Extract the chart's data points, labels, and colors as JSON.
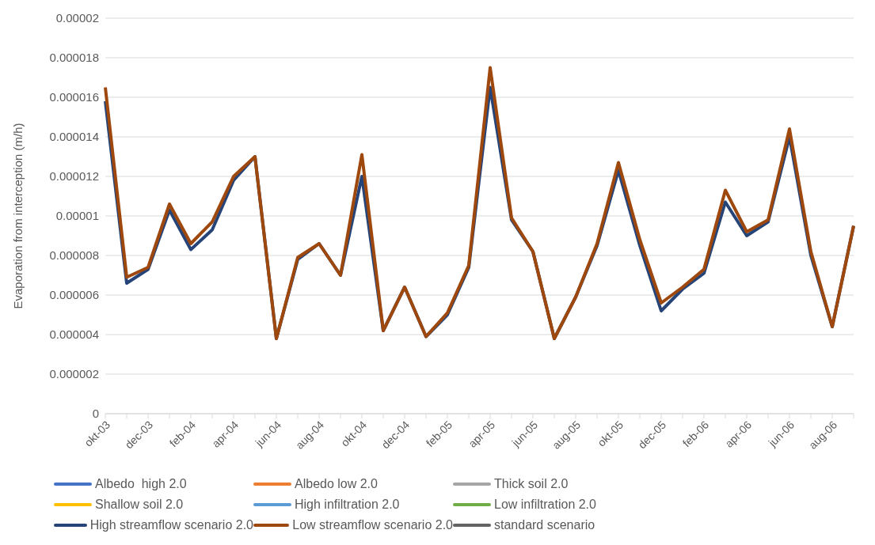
{
  "chart_data": {
    "type": "line",
    "ylabel": "Evaporation from interception (m/h)",
    "categories": [
      "okt-03",
      null,
      "dec-03",
      null,
      "feb-04",
      null,
      "apr-04",
      null,
      "jun-04",
      null,
      "aug-04",
      null,
      "okt-04",
      null,
      "dec-04",
      null,
      "feb-05",
      null,
      "apr-05",
      null,
      "jun-05",
      null,
      "aug-05",
      null,
      "okt-05",
      null,
      "dec-05",
      null,
      "feb-06",
      null,
      "apr-06",
      null,
      "jun-06",
      null,
      "aug-06",
      null
    ],
    "ylim": [
      0,
      2e-05
    ],
    "yticks": [
      0,
      {
        "value": 2e-06,
        "label": "0.000002"
      },
      {
        "value": 4e-06,
        "label": "0.000004"
      },
      {
        "value": 6e-06,
        "label": "0.000006"
      },
      {
        "value": 8e-06,
        "label": "0.000008"
      },
      {
        "value": 1e-05,
        "label": "0.00001"
      },
      {
        "value": 1.2e-05,
        "label": "0.000012"
      },
      {
        "value": 1.4e-05,
        "label": "0.000014"
      },
      {
        "value": 1.6e-05,
        "label": "0.000016"
      },
      {
        "value": 1.8e-05,
        "label": "0.000018"
      },
      {
        "value": 2e-05,
        "label": "0.00002"
      }
    ],
    "grid": "y",
    "legend": "bottom",
    "marker": "none",
    "line_style": "solid",
    "series": [
      {
        "name": "Albedo  high 2.0",
        "color": "#4472c4",
        "values": [
          null,
          null,
          null,
          null,
          null,
          null,
          null,
          null,
          null,
          null,
          null,
          null,
          null,
          null,
          null,
          null,
          null,
          null,
          null,
          null,
          null,
          null,
          null,
          null,
          null,
          null,
          null,
          null,
          null,
          null,
          null,
          null,
          null,
          null,
          null,
          null
        ]
      },
      {
        "name": "Albedo low 2.0",
        "color": "#ed7d31",
        "values": [
          null,
          null,
          null,
          null,
          null,
          null,
          null,
          null,
          null,
          null,
          null,
          null,
          null,
          null,
          null,
          null,
          null,
          null,
          null,
          null,
          null,
          null,
          null,
          null,
          null,
          null,
          null,
          null,
          null,
          null,
          null,
          null,
          null,
          null,
          null,
          null
        ]
      },
      {
        "name": "Thick soil 2.0",
        "color": "#a5a5a5",
        "values": [
          null,
          null,
          null,
          null,
          null,
          null,
          null,
          null,
          null,
          null,
          null,
          null,
          null,
          null,
          null,
          null,
          null,
          null,
          null,
          null,
          null,
          null,
          null,
          null,
          null,
          null,
          null,
          null,
          null,
          null,
          null,
          null,
          null,
          null,
          null,
          null
        ]
      },
      {
        "name": "Shallow soil 2.0",
        "color": "#ffc000",
        "values": [
          null,
          null,
          null,
          null,
          null,
          null,
          null,
          null,
          null,
          null,
          null,
          null,
          null,
          null,
          null,
          null,
          null,
          null,
          null,
          null,
          null,
          null,
          null,
          null,
          null,
          null,
          null,
          null,
          null,
          null,
          null,
          null,
          null,
          null,
          null,
          null
        ]
      },
      {
        "name": "High infiltration 2.0",
        "color": "#5b9bd5",
        "values": [
          null,
          null,
          null,
          null,
          null,
          null,
          null,
          null,
          null,
          null,
          null,
          null,
          null,
          null,
          null,
          null,
          null,
          null,
          null,
          null,
          null,
          null,
          null,
          null,
          null,
          null,
          null,
          null,
          null,
          null,
          null,
          null,
          null,
          null,
          null,
          null
        ]
      },
      {
        "name": "Low infiltration 2.0",
        "color": "#70ad47",
        "values": [
          null,
          null,
          null,
          null,
          null,
          null,
          null,
          null,
          null,
          null,
          null,
          null,
          null,
          null,
          null,
          null,
          null,
          null,
          null,
          null,
          null,
          null,
          null,
          null,
          null,
          null,
          null,
          null,
          null,
          null,
          null,
          null,
          null,
          null,
          null,
          null
        ]
      },
      {
        "name": "High streamflow scenario 2.0",
        "color": "#264478",
        "values": [
          1.58e-05,
          6.6e-06,
          7.3e-06,
          1.03e-05,
          8.3e-06,
          9.3e-06,
          1.18e-05,
          1.3e-05,
          3.8e-06,
          7.8e-06,
          8.6e-06,
          7e-06,
          1.2e-05,
          4.2e-06,
          6.4e-06,
          3.9e-06,
          5e-06,
          7.4e-06,
          1.65e-05,
          9.8e-06,
          8.2e-06,
          3.8e-06,
          5.9e-06,
          8.5e-06,
          1.23e-05,
          8.5e-06,
          5.2e-06,
          6.3e-06,
          7.1e-06,
          1.07e-05,
          9e-06,
          9.7e-06,
          1.4e-05,
          8e-06,
          4.4e-06,
          9.5e-06
        ]
      },
      {
        "name": "Low streamflow scenario 2.0",
        "color": "#9e480e",
        "values": [
          1.65e-05,
          6.9e-06,
          7.4e-06,
          1.06e-05,
          8.6e-06,
          9.7e-06,
          1.2e-05,
          1.3e-05,
          3.8e-06,
          7.9e-06,
          8.6e-06,
          7e-06,
          1.31e-05,
          4.2e-06,
          6.4e-06,
          3.9e-06,
          5.1e-06,
          7.5e-06,
          1.75e-05,
          9.9e-06,
          8.2e-06,
          3.8e-06,
          5.9e-06,
          8.6e-06,
          1.27e-05,
          8.8e-06,
          5.6e-06,
          6.4e-06,
          7.3e-06,
          1.13e-05,
          9.2e-06,
          9.8e-06,
          1.44e-05,
          8.2e-06,
          4.4e-06,
          9.5e-06
        ]
      },
      {
        "name": "standard scenario",
        "color": "#636363",
        "values": [
          null,
          null,
          null,
          null,
          null,
          null,
          null,
          null,
          null,
          null,
          null,
          null,
          null,
          null,
          null,
          null,
          null,
          null,
          null,
          null,
          null,
          null,
          null,
          null,
          null,
          null,
          null,
          null,
          null,
          null,
          null,
          null,
          null,
          null,
          null,
          null
        ]
      }
    ]
  }
}
